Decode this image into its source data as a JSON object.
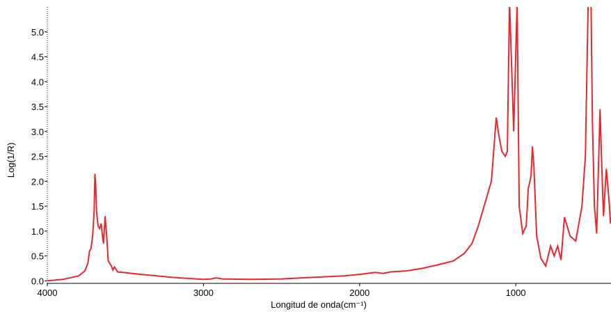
{
  "chart_data": {
    "type": "line",
    "xlabel": "Longitud de onda(cm⁻¹)",
    "ylabel": "Log(1/R)",
    "xlim": [
      4000,
      390
    ],
    "ylim": [
      -0.05,
      5.5
    ],
    "xticks": [
      4000,
      3000,
      2000,
      1000
    ],
    "yticks": [
      {
        "value": 0,
        "label": "0.0"
      },
      0.5,
      {
        "value": 1,
        "label": "1.0"
      },
      1.5,
      {
        "value": 2,
        "label": "2.0"
      },
      2.5,
      {
        "value": 3,
        "label": "3.0"
      },
      3.5,
      {
        "value": 4,
        "label": "4.0"
      },
      4.5,
      {
        "value": 5,
        "label": "5.0"
      }
    ],
    "x": [
      4000,
      3900,
      3800,
      3760,
      3740,
      3730,
      3720,
      3710,
      3700,
      3695,
      3690,
      3685,
      3675,
      3665,
      3655,
      3645,
      3640,
      3630,
      3620,
      3610,
      3590,
      3580,
      3570,
      3550,
      3400,
      3200,
      3000,
      2950,
      2920,
      2880,
      2700,
      2500,
      2300,
      2100,
      2000,
      1900,
      1850,
      1800,
      1700,
      1600,
      1500,
      1400,
      1330,
      1280,
      1240,
      1156,
      1125,
      1107,
      1089,
      1067,
      1054,
      1040,
      1013,
      991,
      978,
      955,
      933,
      920,
      902,
      893,
      884,
      866,
      839,
      808,
      777,
      754,
      732,
      710,
      688,
      652,
      616,
      576,
      554,
      536,
      518,
      509,
      496,
      482,
      460,
      451,
      438,
      420,
      402,
      393
    ],
    "series": [
      {
        "name": "Log(1/R)",
        "color": "#e8262c",
        "values": [
          0.0,
          0.03,
          0.1,
          0.2,
          0.35,
          0.6,
          0.65,
          0.9,
          1.4,
          2.15,
          1.9,
          1.4,
          1.1,
          1.05,
          1.15,
          0.85,
          0.75,
          1.3,
          0.9,
          0.4,
          0.3,
          0.22,
          0.28,
          0.18,
          0.13,
          0.07,
          0.03,
          0.04,
          0.06,
          0.04,
          0.03,
          0.04,
          0.07,
          0.1,
          0.13,
          0.17,
          0.15,
          0.18,
          0.2,
          0.25,
          0.32,
          0.4,
          0.55,
          0.75,
          1.1,
          2.0,
          3.28,
          2.9,
          2.6,
          2.5,
          2.6,
          5.6,
          3.0,
          5.6,
          1.5,
          0.95,
          1.1,
          1.85,
          2.1,
          2.7,
          2.3,
          0.9,
          0.45,
          0.3,
          0.7,
          0.5,
          0.7,
          0.42,
          1.28,
          0.9,
          0.8,
          1.5,
          2.5,
          5.6,
          5.6,
          3.2,
          1.5,
          0.95,
          3.45,
          2.5,
          1.3,
          2.25,
          1.6,
          1.15
        ]
      }
    ]
  }
}
